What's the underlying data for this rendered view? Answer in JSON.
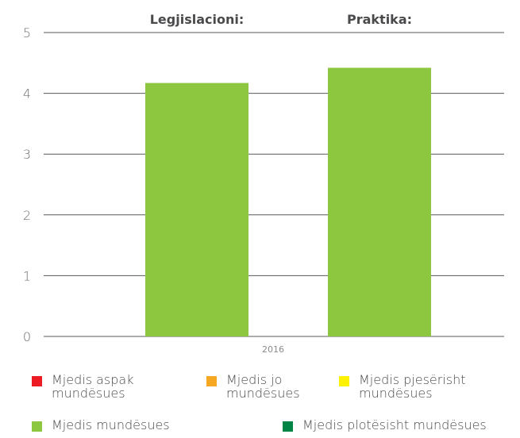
{
  "chart_data": {
    "type": "bar",
    "categories": [
      "Legjislacioni:",
      "Praktika:"
    ],
    "values": [
      4.17,
      4.42
    ],
    "x_axis_label": "2016",
    "ylim": [
      0,
      5
    ],
    "yticks": [
      "0",
      "1",
      "2",
      "3",
      "4",
      "5"
    ],
    "grid": true,
    "bar_color": "#8dc63f"
  },
  "legend": {
    "items": [
      {
        "label": "Mjedis aspak mundësues",
        "color": "#ed1c24"
      },
      {
        "label": "Mjedis jo mundësues",
        "color": "#f7a823"
      },
      {
        "label": "Mjedis pjesërisht mundësues",
        "color": "#fff200"
      },
      {
        "label": "Mjedis mundësues",
        "color": "#8dc63f"
      },
      {
        "label": "Mjedis plotësisht mundësues",
        "color": "#008446"
      }
    ]
  }
}
